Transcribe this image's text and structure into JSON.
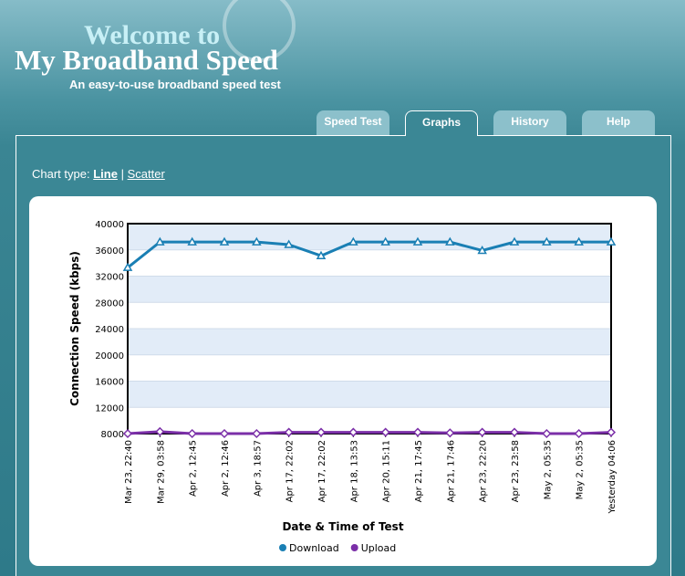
{
  "header": {
    "title_line1": "Welcome to",
    "title_line2": "My Broadband Speed",
    "tagline": "An easy-to-use broadband speed test"
  },
  "nav": {
    "tabs": [
      "Speed Test",
      "Graphs",
      "History",
      "Help"
    ],
    "active": 1
  },
  "chart_type": {
    "label": "Chart type:",
    "options": [
      "Line",
      "Scatter"
    ],
    "separator": "|",
    "selected": 0
  },
  "chart_data": {
    "type": "line",
    "x_label": "Date & Time of Test",
    "y_label": "Connection Speed (kbps)",
    "categories": [
      "Mar 23, 22:40",
      "Mar 29, 03:58",
      "Apr 2, 12:45",
      "Apr 2, 12:46",
      "Apr 3, 18:57",
      "Apr 17, 22:02",
      "Apr 17, 22:02",
      "Apr 18, 13:53",
      "Apr 20, 15:11",
      "Apr 21, 17:45",
      "Apr 21, 17:46",
      "Apr 23, 22:20",
      "Apr 23, 23:58",
      "May 2, 05:35",
      "May 2, 05:35",
      "Yesterday 04:06"
    ],
    "series": [
      {
        "name": "Download",
        "color": "#1a7fb4",
        "marker": "triangle",
        "values": [
          33300,
          37200,
          37200,
          37200,
          37200,
          36800,
          35100,
          37200,
          37200,
          37200,
          37200,
          35900,
          37200,
          37200,
          37200,
          37200
        ]
      },
      {
        "name": "Upload",
        "color": "#7b2fa8",
        "marker": "diamond",
        "values": [
          8000,
          8300,
          8000,
          8000,
          8000,
          8200,
          8200,
          8200,
          8200,
          8200,
          8100,
          8200,
          8200,
          8000,
          8000,
          8200
        ]
      }
    ],
    "ylim": [
      8000,
      40000
    ],
    "yticks": [
      8000,
      12000,
      16000,
      20000,
      24000,
      28000,
      32000,
      36000,
      40000
    ],
    "grid": true,
    "legend": "bottom"
  }
}
